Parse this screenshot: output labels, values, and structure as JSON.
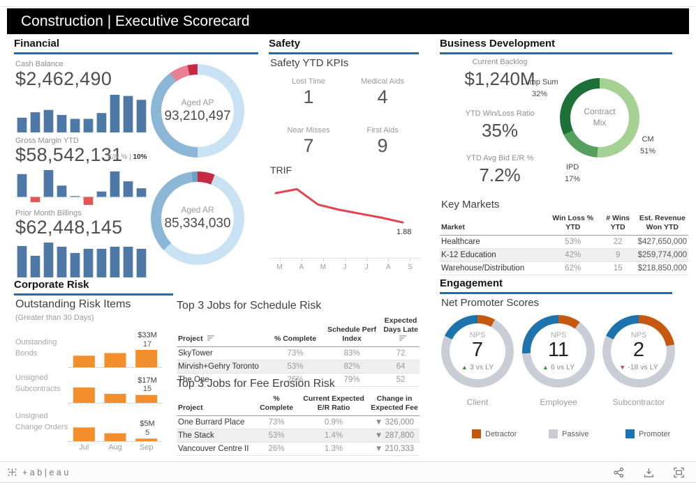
{
  "title_bar": {
    "title": "Construction | Executive Scorecard"
  },
  "financial": {
    "heading": "Financial",
    "cash_balance": {
      "label": "Cash Balance",
      "value": "$2,462,490",
      "bars": {
        "values": [
          38,
          52,
          58,
          45,
          35,
          35,
          50,
          97,
          94,
          84
        ],
        "color": "#4e79a7"
      }
    },
    "gross_margin": {
      "label": "Gross Margin YTD",
      "value": "$58,542,131",
      "er_label": "E/R % | ",
      "er_value": "10%",
      "bars": {
        "values": [
          85,
          -20,
          100,
          42,
          3,
          -30,
          20,
          95,
          58,
          32
        ],
        "color": "#4e79a7",
        "neg_color": "#e15759"
      }
    },
    "billings": {
      "label": "Prior Month Billings",
      "value": "$62,448,145",
      "bars": {
        "values": [
          90,
          62,
          100,
          88,
          70,
          82,
          82,
          88,
          88,
          82
        ],
        "color": "#4e79a7"
      }
    },
    "aged_ap": {
      "label": "Aged AP",
      "value": "93,210,497",
      "segments": [
        {
          "color": "#c9e2f3",
          "v": 50
        },
        {
          "color": "#8cb6d6",
          "v": 40
        },
        {
          "color": "#e87f92",
          "v": 6.5
        },
        {
          "color": "#c72b44",
          "v": 3.5
        }
      ]
    },
    "aged_ar": {
      "label": "Aged AR",
      "value": "85,334,030",
      "segments": [
        {
          "color": "#c72b44",
          "v": 6
        },
        {
          "color": "#c9e2f3",
          "v": 57
        },
        {
          "color": "#8cb6d6",
          "v": 35
        },
        {
          "color": "#6d9ec4",
          "v": 2
        }
      ]
    }
  },
  "safety": {
    "heading": "Safety",
    "title": "Safety YTD KPIs",
    "kpis": [
      {
        "label": "Lost Time",
        "value": "1"
      },
      {
        "label": "Medical Aids",
        "value": "4"
      },
      {
        "label": "Near Misses",
        "value": "7"
      },
      {
        "label": "First Aids",
        "value": "9"
      }
    ],
    "trif": {
      "title": "TRIF",
      "months": [
        "M",
        "A",
        "M",
        "J",
        "J",
        "A",
        "S"
      ],
      "values": [
        2.62,
        2.72,
        2.33,
        2.2,
        2.1,
        2.0,
        1.88
      ],
      "end_label": "1.88",
      "color": "#e0454e",
      "ymin": 1.55,
      "ymax": 2.85
    }
  },
  "business_development": {
    "heading": "Business Development",
    "kpis": [
      {
        "label": "Current Backlog",
        "value": "$1,240M"
      },
      {
        "label": "YTD Win/Loss Ratio",
        "value": "35%"
      },
      {
        "label": "YTD Avg Bid E/R %",
        "value": "7.2%"
      }
    ],
    "contract_mix": {
      "center_line1": "Contract",
      "center_line2": "Mix",
      "slices": [
        {
          "label": "CM",
          "pct": "51%",
          "v": 51,
          "color": "#a5d193"
        },
        {
          "label": "IPD",
          "pct": "17%",
          "v": 17,
          "color": "#55a05e"
        },
        {
          "label": "Lump Sum",
          "pct": "32%",
          "v": 32,
          "color": "#1d7038"
        }
      ]
    },
    "key_markets": {
      "title": "Key Markets",
      "columns": [
        {
          "lines": [
            "Market"
          ]
        },
        {
          "lines": [
            "Win Loss %",
            "YTD"
          ]
        },
        {
          "lines": [
            "# Wins",
            "YTD"
          ]
        },
        {
          "lines": [
            "Est. Revenue",
            "Won YTD"
          ]
        }
      ],
      "rows": [
        [
          "Healthcare",
          "53%",
          "22",
          "$427,650,000"
        ],
        [
          "K-12 Education",
          "42%",
          "9",
          "$259,774,000"
        ],
        [
          "Warehouse/Distribution",
          "62%",
          "15",
          "$218,850,000"
        ]
      ]
    }
  },
  "corporate_risk": {
    "heading": "Corporate Risk",
    "title": "Outstanding Risk Items",
    "subtitle": "(Greater than 30 Days)",
    "months": [
      "Jul",
      "Aug",
      "Sep"
    ],
    "bar_color": "#f28e2b",
    "groups": [
      {
        "label": "Outstanding Bonds",
        "ann_value": "$33M",
        "ann_count": "17",
        "values": [
          22,
          27,
          33
        ]
      },
      {
        "label": "Unsigned Subcontracts",
        "ann_value": "$17M",
        "ann_count": "15",
        "values": [
          29,
          17,
          15
        ]
      },
      {
        "label": "Unsigned Change Orders",
        "ann_value": "$5M",
        "ann_count": "5",
        "values": [
          26,
          15,
          5
        ]
      }
    ],
    "schedule_table": {
      "title": "Top 3 Jobs for Schedule Risk",
      "columns": [
        {
          "lines": [
            "Project"
          ],
          "sort": true
        },
        {
          "lines": [
            "% Complete"
          ]
        },
        {
          "lines": [
            "Schedule Perf",
            "Index"
          ]
        },
        {
          "lines": [
            "Expected",
            "Days Late"
          ],
          "sort": true
        }
      ],
      "rows": [
        [
          "SkyTower",
          "73%",
          "83%",
          "72"
        ],
        [
          "Mirvish+Gehry Toronto",
          "53%",
          "82%",
          "64"
        ],
        [
          "The One",
          "26%",
          "79%",
          "52"
        ]
      ]
    },
    "fee_table": {
      "title": "Top 3 Jobs for Fee Erosion Risk",
      "columns": [
        {
          "lines": [
            "Project"
          ]
        },
        {
          "lines": [
            "%",
            "Complete"
          ]
        },
        {
          "lines": [
            "Current Expected",
            "E/R Ratio"
          ]
        },
        {
          "lines": [
            "Change in",
            "Expected Fee"
          ]
        }
      ],
      "rows": [
        [
          "One Burrard Place",
          "73%",
          "0.9%",
          "▼ 326,000"
        ],
        [
          "The Stack",
          "53%",
          "1.4%",
          "▼ 287,800"
        ],
        [
          "Vancouver Centre II",
          "26%",
          "1.3%",
          "▼ 210,333"
        ]
      ]
    }
  },
  "engagement": {
    "heading": "Engagement",
    "title": "Net Promoter Scores",
    "gauges": [
      {
        "category": "Client",
        "nps_label": "NPS",
        "score": "7",
        "delta": "3 vs LY",
        "direction": "up",
        "segments": [
          {
            "color": "#c65911",
            "v": 8
          },
          {
            "color": "#c9ced6",
            "v": 74
          },
          {
            "color": "#1d74ad",
            "v": 18
          }
        ]
      },
      {
        "category": "Employee",
        "nps_label": "NPS",
        "score": "11",
        "delta": "6 vs LY",
        "direction": "up",
        "segments": [
          {
            "color": "#c65911",
            "v": 10
          },
          {
            "color": "#c9ced6",
            "v": 64
          },
          {
            "color": "#1d74ad",
            "v": 26
          }
        ]
      },
      {
        "category": "Subcontractor",
        "nps_label": "NPS",
        "score": "2",
        "delta": "-18 vs LY",
        "direction": "down",
        "segments": [
          {
            "color": "#c65911",
            "v": 22
          },
          {
            "color": "#c9ced6",
            "v": 60
          },
          {
            "color": "#1d74ad",
            "v": 18
          }
        ]
      }
    ],
    "legend": [
      {
        "label": "Detractor",
        "color": "#c65911"
      },
      {
        "label": "Passive",
        "color": "#c9ced6"
      },
      {
        "label": "Promoter",
        "color": "#1d74ad"
      }
    ]
  },
  "footer": {
    "logo_text": "+ab|eau",
    "icons": [
      "share",
      "download",
      "fullscreen"
    ]
  }
}
